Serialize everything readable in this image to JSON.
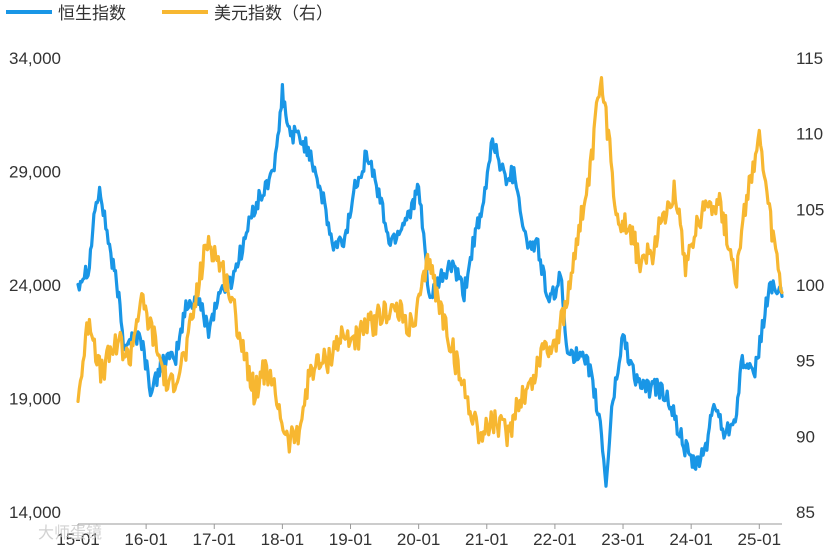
{
  "chart_data": {
    "type": "line",
    "title": "",
    "xlabel": "",
    "ylabel": "",
    "x_tick_labels": [
      "15-01",
      "16-01",
      "17-01",
      "18-01",
      "19-01",
      "20-01",
      "21-01",
      "22-01",
      "23-01",
      "24-01",
      "25-01"
    ],
    "y_left_ticks": [
      "14,000",
      "19,000",
      "24,000",
      "29,000",
      "34,000"
    ],
    "y_right_ticks": [
      "85",
      "90",
      "95",
      "100",
      "105",
      "110",
      "115"
    ],
    "ylim_left": [
      14000,
      34000
    ],
    "ylim_right": [
      85,
      115
    ],
    "x_range": [
      "2015-01",
      "2025-05"
    ],
    "grid": false,
    "legend_position": "top-left",
    "watermark": "大师蛋镜",
    "series": [
      {
        "name": "恒生指数",
        "axis": "left",
        "color": "#1996E6",
        "x": [
          "2015-01",
          "2015-03",
          "2015-04",
          "2015-05",
          "2015-07",
          "2015-08",
          "2015-09",
          "2015-12",
          "2016-02",
          "2016-04",
          "2016-06",
          "2016-08",
          "2016-10",
          "2016-12",
          "2017-02",
          "2017-04",
          "2017-06",
          "2017-08",
          "2017-10",
          "2017-12",
          "2018-01",
          "2018-02",
          "2018-04",
          "2018-06",
          "2018-08",
          "2018-10",
          "2018-12",
          "2019-02",
          "2019-04",
          "2019-06",
          "2019-08",
          "2019-10",
          "2019-12",
          "2020-01",
          "2020-03",
          "2020-05",
          "2020-07",
          "2020-09",
          "2020-11",
          "2020-12",
          "2021-02",
          "2021-04",
          "2021-06",
          "2021-08",
          "2021-10",
          "2021-12",
          "2022-02",
          "2022-03",
          "2022-05",
          "2022-07",
          "2022-09",
          "2022-10",
          "2022-11",
          "2023-01",
          "2023-03",
          "2023-05",
          "2023-07",
          "2023-09",
          "2023-11",
          "2024-01",
          "2024-02",
          "2024-04",
          "2024-05",
          "2024-07",
          "2024-09",
          "2024-10",
          "2024-12",
          "2025-02",
          "2025-03",
          "2025-05"
        ],
        "values": [
          24100,
          24900,
          27500,
          28000,
          25000,
          23800,
          21500,
          21800,
          19200,
          20800,
          20600,
          23000,
          23400,
          22100,
          23700,
          24200,
          25700,
          27400,
          28200,
          29700,
          32500,
          30800,
          30500,
          29800,
          27900,
          25600,
          26000,
          28600,
          29800,
          28000,
          25800,
          26600,
          27600,
          28200,
          23300,
          24300,
          24900,
          23600,
          26400,
          26800,
          30500,
          28800,
          28900,
          25800,
          25700,
          23100,
          24400,
          21400,
          20800,
          20400,
          17900,
          15200,
          18500,
          21800,
          20000,
          19400,
          19500,
          19000,
          17400,
          16200,
          16000,
          17200,
          18900,
          17400,
          18500,
          20800,
          19800,
          22800,
          24100,
          23500
        ]
      },
      {
        "name": "美元指数（右）",
        "axis": "right",
        "color": "#F7B731",
        "x": [
          "2015-01",
          "2015-03",
          "2015-05",
          "2015-08",
          "2015-10",
          "2015-12",
          "2016-02",
          "2016-05",
          "2016-08",
          "2016-11",
          "2016-12",
          "2017-03",
          "2017-05",
          "2017-08",
          "2017-10",
          "2017-12",
          "2018-02",
          "2018-04",
          "2018-06",
          "2018-09",
          "2018-11",
          "2019-02",
          "2019-05",
          "2019-08",
          "2019-10",
          "2019-12",
          "2020-03",
          "2020-04",
          "2020-06",
          "2020-09",
          "2020-12",
          "2021-02",
          "2021-05",
          "2021-06",
          "2021-09",
          "2021-11",
          "2022-01",
          "2022-03",
          "2022-05",
          "2022-07",
          "2022-09",
          "2022-10",
          "2022-12",
          "2023-02",
          "2023-04",
          "2023-06",
          "2023-08",
          "2023-10",
          "2023-12",
          "2024-02",
          "2024-04",
          "2024-06",
          "2024-09",
          "2024-11",
          "2025-01",
          "2025-03",
          "2025-05"
        ],
        "values": [
          92.5,
          98.0,
          94.0,
          96.5,
          95.0,
          99.0,
          97.0,
          93.0,
          95.5,
          101.5,
          103.0,
          100.5,
          97.5,
          93.0,
          94.5,
          92.5,
          89.5,
          90.5,
          94.5,
          95.0,
          96.5,
          96.5,
          97.5,
          98.5,
          98.0,
          97.0,
          102.0,
          99.5,
          97.0,
          93.0,
          90.0,
          91.0,
          90.0,
          92.0,
          93.5,
          96.0,
          96.0,
          98.5,
          103.5,
          106.5,
          113.5,
          111.0,
          104.5,
          104.0,
          101.5,
          102.0,
          104.5,
          106.5,
          101.5,
          104.0,
          105.5,
          105.5,
          100.5,
          106.5,
          109.5,
          104.0,
          99.5
        ]
      }
    ]
  }
}
